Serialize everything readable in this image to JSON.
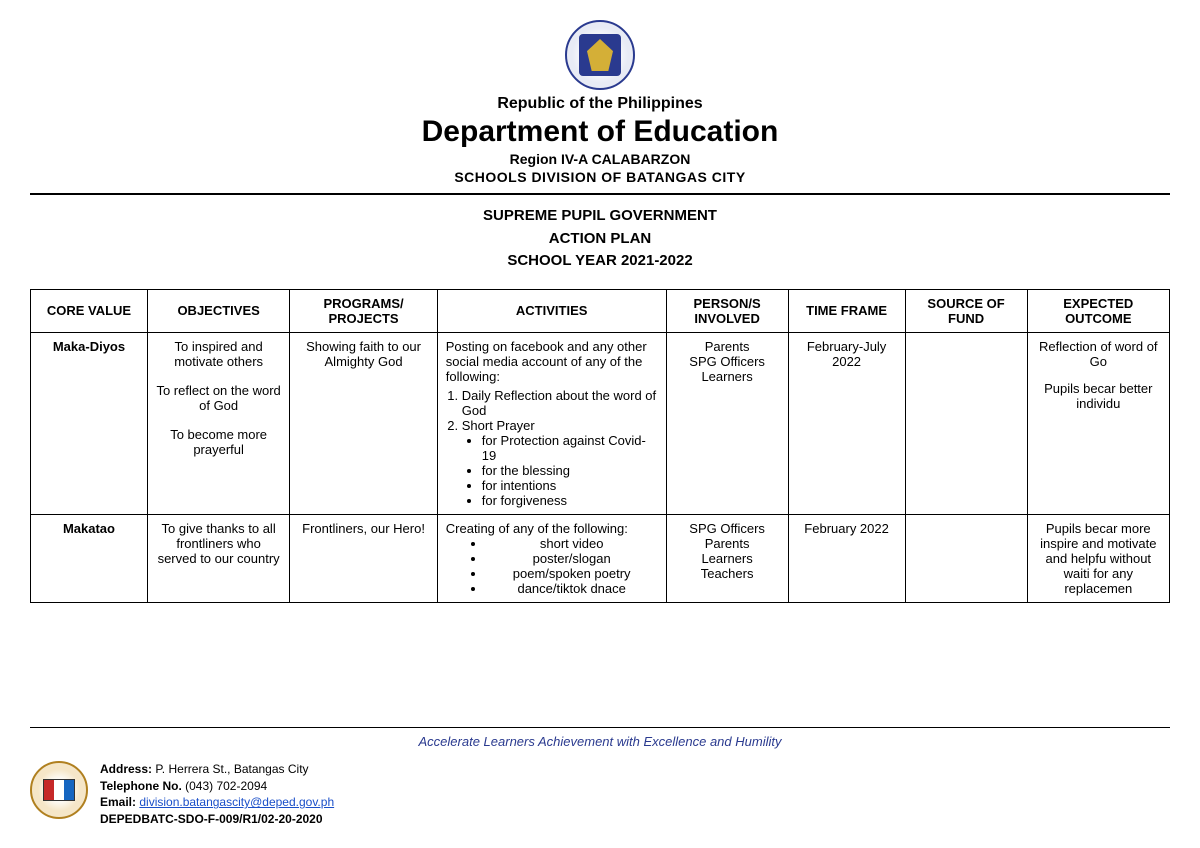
{
  "header": {
    "republic": "Republic of the Philippines",
    "department": "Department of Education",
    "region": "Region IV-A CALABARZON",
    "division": "SCHOOLS DIVISION OF BATANGAS CITY"
  },
  "title": {
    "line1": "SUPREME PUPIL GOVERNMENT",
    "line2": "ACTION PLAN",
    "line3": "SCHOOL YEAR 2021-2022"
  },
  "table": {
    "headers": {
      "core": "CORE VALUE",
      "objectives": "OBJECTIVES",
      "programs": "PROGRAMS/ PROJECTS",
      "activities": "ACTIVITIES",
      "persons": "PERSON/S INVOLVED",
      "timeframe": "TIME FRAME",
      "fund": "SOURCE OF FUND",
      "outcome": "EXPECTED OUTCOME"
    },
    "rows": [
      {
        "core": "Maka-Diyos",
        "objectives": [
          "To inspired and motivate others",
          "To reflect on the word of God",
          "To become more prayerful"
        ],
        "programs": "Showing faith to our Almighty God",
        "activities_intro": "Posting on facebook and any other social media account of any of the following:",
        "activities_num": [
          "Daily Reflection about the word of God",
          "Short Prayer"
        ],
        "activities_sub": [
          "for Protection against Covid-19",
          "for the blessing",
          "for intentions",
          "for forgiveness"
        ],
        "persons": [
          "Parents",
          "SPG Officers",
          "Learners"
        ],
        "timeframe": "February-July 2022",
        "fund": "",
        "outcome": [
          "Reflection of word of Go",
          "Pupils becar better individu"
        ]
      },
      {
        "core": "Makatao",
        "objectives": [
          "To give thanks to all frontliners who served to our country"
        ],
        "programs": "Frontliners, our Hero!",
        "activities_intro": "Creating of any of the following:",
        "activities_sub": [
          "short video",
          "poster/slogan",
          "poem/spoken poetry",
          "dance/tiktok dnace"
        ],
        "persons": [
          "SPG Officers",
          "Parents",
          "Learners",
          "Teachers"
        ],
        "timeframe": "February 2022",
        "fund": "",
        "outcome": [
          "Pupils becar more inspire and motivate and helpfu without waiti for any replacemen"
        ]
      }
    ]
  },
  "footer": {
    "motto": "Accelerate Learners Achievement with Excellence and Humility",
    "address_label": "Address:",
    "address": " P. Herrera St., Batangas City",
    "phone_label": "Telephone No.",
    "phone": " (043) 702-2094",
    "email_label": "Email:",
    "email": "division.batangascity@deped.gov.ph",
    "code": "DEPEDBATC-SDO-F-009/R1/02-20-2020"
  },
  "colors": {
    "text": "#000000",
    "link": "#1a4fc9",
    "motto": "#2a3a8f",
    "seal_border": "#2a3a8f"
  }
}
